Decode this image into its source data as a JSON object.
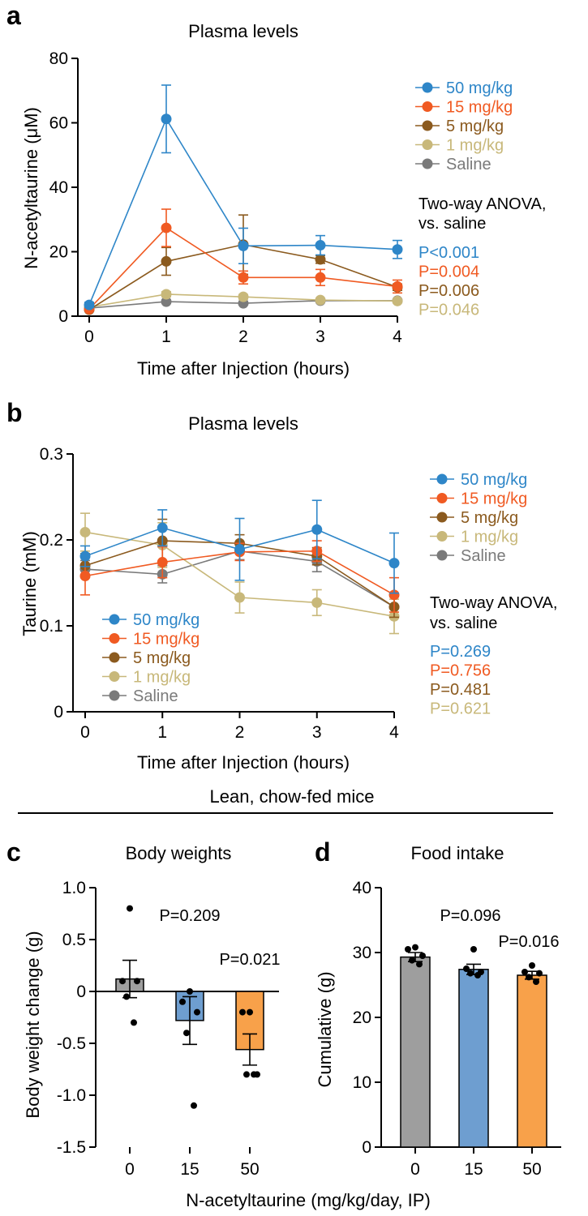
{
  "chart_data": [
    {
      "panel": "a",
      "type": "line",
      "title": "Plasma levels",
      "xlabel": "Time after Injection (hours)",
      "ylabel": "N-acetyltaurine (μM)",
      "x": [
        0,
        1,
        2,
        3,
        4
      ],
      "xlim": [
        0,
        4
      ],
      "ylim": [
        0,
        80
      ],
      "yticks": [
        "0",
        "20",
        "40",
        "60",
        "80"
      ],
      "xticks": [
        "0",
        "1",
        "2",
        "3",
        "4"
      ],
      "series": [
        {
          "name": "50 mg/kg",
          "color": "#2E86C8",
          "values": [
            3.5,
            61.2,
            21.8,
            22.0,
            20.7
          ],
          "errors": [
            0.8,
            10.5,
            5.5,
            3.0,
            2.8
          ]
        },
        {
          "name": "15 mg/kg",
          "color": "#F05A22",
          "values": [
            2.2,
            27.4,
            12.0,
            12.0,
            9.2
          ],
          "errors": [
            0.5,
            5.8,
            2.0,
            2.5,
            2.0
          ]
        },
        {
          "name": "5 mg/kg",
          "color": "#8B5A1E",
          "values": [
            2.0,
            17.0,
            22.2,
            17.6,
            9.0
          ],
          "errors": [
            0.4,
            4.3,
            9.2,
            1.2,
            1.0
          ]
        },
        {
          "name": "1 mg/kg",
          "color": "#C8B87A",
          "values": [
            2.8,
            6.8,
            6.0,
            5.0,
            4.7
          ],
          "errors": [
            0.3,
            0.8,
            0.7,
            0.5,
            0.5
          ]
        },
        {
          "name": "Saline",
          "color": "#7A7A7A",
          "values": [
            2.5,
            4.5,
            4.0,
            4.8,
            4.8
          ],
          "errors": [
            0.3,
            0.5,
            0.4,
            0.5,
            0.5
          ]
        }
      ],
      "stats_title": [
        "Two-way ANOVA,",
        "vs. saline"
      ],
      "pvalues": [
        {
          "text": "P<0.001",
          "color": "#2E86C8"
        },
        {
          "text": "P=0.004",
          "color": "#F05A22"
        },
        {
          "text": "P=0.006",
          "color": "#8B5A1E"
        },
        {
          "text": "P=0.046",
          "color": "#C8B87A"
        }
      ]
    },
    {
      "panel": "b",
      "type": "line",
      "title": "Plasma levels",
      "xlabel": "Time after Injection (hours)",
      "ylabel": "Taurine (mM)",
      "x": [
        0,
        1,
        2,
        3,
        4
      ],
      "xlim": [
        0,
        4
      ],
      "ylim": [
        0,
        0.3
      ],
      "yticks": [
        "0",
        "0.1",
        "0.2",
        "0.3"
      ],
      "xticks": [
        "0",
        "1",
        "2",
        "3",
        "4"
      ],
      "series": [
        {
          "name": "50 mg/kg",
          "color": "#2E86C8",
          "values": [
            0.181,
            0.214,
            0.189,
            0.212,
            0.173
          ],
          "errors": [
            0.012,
            0.021,
            0.036,
            0.034,
            0.035
          ]
        },
        {
          "name": "15 mg/kg",
          "color": "#F05A22",
          "values": [
            0.158,
            0.174,
            0.186,
            0.187,
            0.136
          ],
          "errors": [
            0.022,
            0.018,
            0.01,
            0.012,
            0.02
          ]
        },
        {
          "name": "5 mg/kg",
          "color": "#8B5A1E",
          "values": [
            0.17,
            0.199,
            0.196,
            0.181,
            0.122
          ],
          "errors": [
            0.014,
            0.025,
            0.01,
            0.01,
            0.012
          ]
        },
        {
          "name": "1 mg/kg",
          "color": "#C8B87A",
          "values": [
            0.209,
            0.194,
            0.133,
            0.127,
            0.111
          ],
          "errors": [
            0.022,
            0.026,
            0.018,
            0.015,
            0.02
          ]
        },
        {
          "name": "Saline",
          "color": "#7A7A7A",
          "values": [
            0.166,
            0.16,
            0.187,
            0.175,
            0.122
          ],
          "errors": [
            0.01,
            0.01,
            0.01,
            0.012,
            0.012
          ]
        }
      ],
      "stats_title": [
        "Two-way ANOVA,",
        "vs. saline"
      ],
      "pvalues": [
        {
          "text": "P=0.269",
          "color": "#2E86C8"
        },
        {
          "text": "P=0.756",
          "color": "#F05A22"
        },
        {
          "text": "P=0.481",
          "color": "#8B5A1E"
        },
        {
          "text": "P=0.621",
          "color": "#C8B87A"
        }
      ]
    },
    {
      "panel": "c",
      "type": "bar",
      "title": "Body weights",
      "ylabel": "Body weight change (g)",
      "categories": [
        "0",
        "15",
        "50"
      ],
      "values": [
        0.12,
        -0.28,
        -0.56
      ],
      "errors": [
        0.18,
        0.23,
        0.15
      ],
      "colors": [
        "#9E9E9E",
        "#6E9ED0",
        "#F8A14A"
      ],
      "points": [
        [
          0.8,
          0.1,
          0.1,
          -0.05,
          -0.3
        ],
        [
          0.0,
          -0.1,
          -0.2,
          -0.4,
          -1.1
        ],
        [
          -0.2,
          -0.2,
          -0.8,
          -0.8,
          -0.8
        ]
      ],
      "ylim": [
        -1.5,
        1.0
      ],
      "yticks": [
        "-1.5",
        "-1.0",
        "-0.5",
        "0",
        "0.5",
        "1.0"
      ],
      "pvalues": [
        "P=0.209",
        "P=0.021"
      ]
    },
    {
      "panel": "d",
      "type": "bar",
      "title": "Food intake",
      "ylabel": "Cumulative (g)",
      "categories": [
        "0",
        "15",
        "50"
      ],
      "values": [
        29.3,
        27.4,
        26.5
      ],
      "errors": [
        0.7,
        0.8,
        0.6
      ],
      "colors": [
        "#9E9E9E",
        "#6E9ED0",
        "#F8A14A"
      ],
      "points": [
        [
          30.8,
          30.5,
          29.5,
          28.8,
          28.2
        ],
        [
          30.5,
          27.5,
          27.0,
          26.8,
          26.5
        ],
        [
          28.0,
          27.0,
          26.8,
          26.2,
          25.5
        ]
      ],
      "ylim": [
        0,
        40
      ],
      "yticks": [
        "0",
        "10",
        "20",
        "30",
        "40"
      ],
      "pvalues": [
        "P=0.096",
        "P=0.016"
      ]
    }
  ],
  "bottom_header": "Lean, chow-fed mice",
  "bottom_xlabel": "N-acetyltaurine (mg/kg/day, IP)",
  "panel_b_inner_legend": [
    "50 mg/kg",
    "15 mg/kg",
    "5 mg/kg",
    "1 mg/kg",
    "Saline"
  ]
}
